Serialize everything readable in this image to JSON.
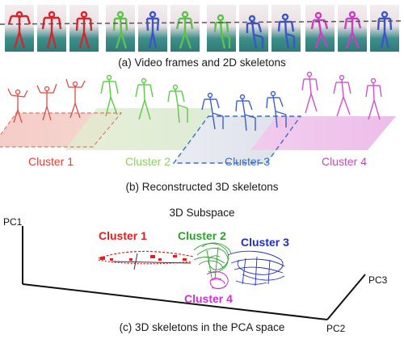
{
  "figure": {
    "caption_a": "(a) Video frames and 2D skeletons",
    "caption_b": "(b) Reconstructed 3D skeletons",
    "caption_c": "(c) 3D skeletons in the PCA space",
    "subspace_title": "3D Subspace"
  },
  "clusters": [
    {
      "label": "Cluster 1",
      "color": "#e0403a"
    },
    {
      "label": "Cluster 2",
      "color": "#8fce62"
    },
    {
      "label": "Cluster 3",
      "color": "#3a6fcf"
    },
    {
      "label": "Cluster 4",
      "color": "#cc44c6"
    }
  ],
  "pca": {
    "axis_labels": {
      "pc1": "PC1",
      "pc2": "PC2",
      "pc3": "PC3"
    },
    "cluster_labels": [
      {
        "label": "Cluster 1",
        "color": "#e02020"
      },
      {
        "label": "Cluster 2",
        "color": "#2ea02e"
      },
      {
        "label": "Cluster 3",
        "color": "#1f2fc0"
      },
      {
        "label": "Cluster 4",
        "color": "#d12fd1"
      }
    ]
  }
}
